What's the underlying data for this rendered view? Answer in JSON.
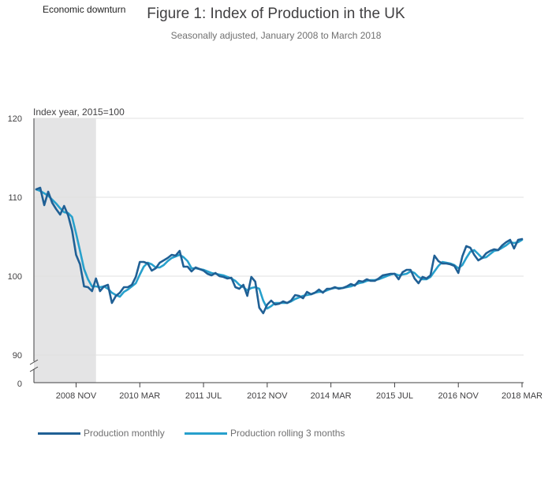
{
  "chart_data": {
    "type": "line",
    "title": "Figure 1: Index of Production in the UK",
    "subtitle": "Seasonally adjusted, January 2008 to March 2018",
    "ylabel": "Index year, 2015=100",
    "shaded_region_label": "Economic downturn",
    "ylim": [
      90,
      120
    ],
    "axis_break_label": "0",
    "yticks": [
      90,
      100,
      110,
      120
    ],
    "xticks": [
      "2008 NOV",
      "2010 MAR",
      "2011 JUL",
      "2012 NOV",
      "2014 MAR",
      "2015 JUL",
      "2016 NOV",
      "2018 MAR"
    ],
    "xtick_month_index": [
      10,
      26,
      42,
      58,
      74,
      90,
      106,
      122
    ],
    "shaded_month_range": [
      0,
      15
    ],
    "x_month_range": [
      0,
      122
    ],
    "x_start": "2008 JAN",
    "grid": true,
    "legend_position": "bottom-left",
    "series": [
      {
        "name": "Production monthly",
        "color": "#206095",
        "values": [
          111.0,
          111.2,
          109.0,
          110.7,
          109.3,
          108.5,
          107.8,
          108.9,
          107.7,
          105.8,
          102.7,
          101.5,
          98.7,
          98.6,
          98.1,
          99.7,
          98.1,
          98.7,
          98.9,
          96.6,
          97.5,
          97.9,
          98.6,
          98.6,
          98.9,
          99.9,
          101.8,
          101.8,
          101.6,
          100.7,
          101.0,
          101.7,
          102.0,
          102.3,
          102.7,
          102.6,
          103.2,
          101.2,
          101.2,
          100.6,
          101.1,
          100.9,
          100.7,
          100.3,
          100.1,
          100.4,
          100.0,
          99.9,
          99.7,
          99.8,
          98.6,
          98.4,
          98.9,
          97.5,
          99.9,
          99.3,
          96.0,
          95.3,
          96.4,
          96.9,
          96.4,
          96.5,
          96.8,
          96.6,
          96.9,
          97.6,
          97.5,
          97.2,
          98.0,
          97.7,
          97.9,
          98.3,
          97.9,
          98.4,
          98.4,
          98.6,
          98.4,
          98.5,
          98.7,
          99.0,
          98.8,
          99.4,
          99.3,
          99.6,
          99.4,
          99.4,
          99.7,
          100.1,
          100.2,
          100.3,
          100.3,
          99.6,
          100.5,
          100.8,
          100.8,
          99.7,
          99.1,
          99.9,
          99.7,
          100.1,
          102.6,
          101.9,
          101.6,
          101.6,
          101.5,
          101.3,
          100.4,
          102.5,
          103.8,
          103.6,
          102.7,
          102.0,
          102.3,
          102.9,
          103.2,
          103.4,
          103.3,
          103.9,
          104.3,
          104.6,
          103.5,
          104.6,
          104.7
        ]
      },
      {
        "name": "Production rolling 3 months",
        "color": "#27a0cc",
        "values": [
          111.0,
          110.8,
          110.5,
          110.2,
          109.7,
          109.2,
          108.6,
          108.1,
          108.0,
          107.5,
          105.4,
          103.2,
          100.9,
          99.6,
          98.7,
          98.7,
          98.6,
          98.7,
          98.4,
          97.9,
          97.6,
          97.4,
          98.0,
          98.3,
          98.7,
          99.1,
          100.2,
          101.2,
          101.7,
          101.5,
          101.1,
          101.1,
          101.4,
          101.9,
          102.3,
          102.5,
          102.7,
          102.4,
          101.9,
          101.0,
          101.0,
          100.9,
          100.8,
          100.6,
          100.4,
          100.3,
          100.2,
          100.1,
          99.9,
          99.7,
          99.4,
          98.9,
          98.6,
          98.2,
          98.5,
          98.6,
          98.4,
          96.9,
          95.9,
          96.2,
          96.6,
          96.6,
          96.6,
          96.6,
          96.8,
          97.1,
          97.3,
          97.5,
          97.6,
          97.7,
          97.9,
          98.0,
          98.0,
          98.2,
          98.4,
          98.5,
          98.5,
          98.5,
          98.6,
          98.7,
          98.9,
          99.1,
          99.2,
          99.4,
          99.5,
          99.5,
          99.6,
          99.8,
          100.0,
          100.2,
          100.3,
          100.1,
          100.2,
          100.3,
          100.6,
          100.4,
          99.9,
          99.6,
          99.6,
          99.9,
          100.6,
          101.3,
          101.8,
          101.7,
          101.6,
          101.4,
          101.0,
          101.4,
          102.3,
          103.1,
          103.3,
          102.8,
          102.3,
          102.4,
          102.8,
          103.2,
          103.3,
          103.6,
          103.9,
          104.3,
          104.2,
          104.3,
          104.6
        ]
      }
    ]
  }
}
